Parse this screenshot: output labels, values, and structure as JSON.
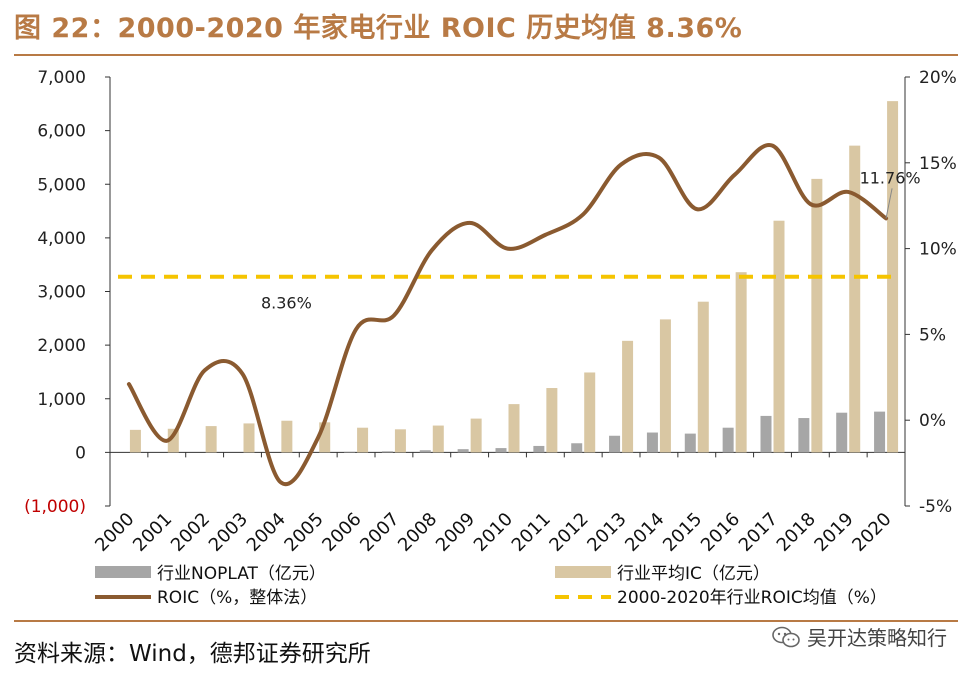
{
  "header": {
    "title": "图 22：2000-2020 年家电行业 ROIC 历史均值 8.36%"
  },
  "footer": {
    "source": "资料来源：Wind，德邦证券研究所",
    "watermark": "吴开达策略知行"
  },
  "colors": {
    "accent": "#b87a45",
    "noplat": "#a6a6a6",
    "ic": "#d9c7a3",
    "roic": "#8a5a30",
    "avg": "#f5c400",
    "negative": "#c00000"
  },
  "chart_data": {
    "type": "bar+line",
    "categories": [
      "2000",
      "2001",
      "2002",
      "2003",
      "2004",
      "2005",
      "2006",
      "2007",
      "2008",
      "2009",
      "2010",
      "2011",
      "2012",
      "2013",
      "2014",
      "2015",
      "2016",
      "2017",
      "2018",
      "2019",
      "2020"
    ],
    "left_axis": {
      "min": -1000,
      "max": 7000,
      "ticks": [
        -1000,
        0,
        1000,
        2000,
        3000,
        4000,
        5000,
        6000,
        7000
      ],
      "tick_labels": [
        "(1,000)",
        "0",
        "1,000",
        "2,000",
        "3,000",
        "4,000",
        "5,000",
        "6,000",
        "7,000"
      ]
    },
    "right_axis": {
      "min": -5,
      "max": 20,
      "ticks": [
        -5,
        0,
        5,
        10,
        15,
        20
      ],
      "tick_labels": [
        "-5%",
        "0%",
        "5%",
        "10%",
        "15%",
        "20%"
      ]
    },
    "series": [
      {
        "name": "行业NOPLAT（亿元）",
        "type": "bar",
        "axis": "left",
        "values": [
          0,
          0,
          0,
          0,
          0,
          0,
          10,
          20,
          40,
          60,
          80,
          120,
          170,
          310,
          370,
          350,
          460,
          680,
          640,
          740,
          760
        ]
      },
      {
        "name": "行业平均IC（亿元）",
        "type": "bar",
        "axis": "left",
        "values": [
          420,
          440,
          490,
          540,
          590,
          560,
          460,
          430,
          500,
          630,
          900,
          1200,
          1490,
          2080,
          2480,
          2810,
          3360,
          4320,
          5100,
          5720,
          6550
        ]
      },
      {
        "name": "ROIC（%，整体法）",
        "type": "line",
        "axis": "right",
        "values": [
          2.1,
          -1.2,
          2.9,
          2.7,
          -3.6,
          -1.0,
          5.3,
          6.1,
          9.9,
          11.5,
          10.0,
          10.8,
          12.0,
          14.9,
          15.3,
          12.3,
          14.3,
          16.0,
          12.6,
          13.3,
          11.76
        ]
      },
      {
        "name": "2000-2020年行业ROIC均值（%）",
        "type": "hline",
        "axis": "right",
        "value": 8.36
      }
    ],
    "annotations": [
      {
        "text": "8.36%",
        "category": "2004",
        "value": 8.36
      },
      {
        "text": "11.76%",
        "category": "2020",
        "value": 11.76
      }
    ]
  }
}
